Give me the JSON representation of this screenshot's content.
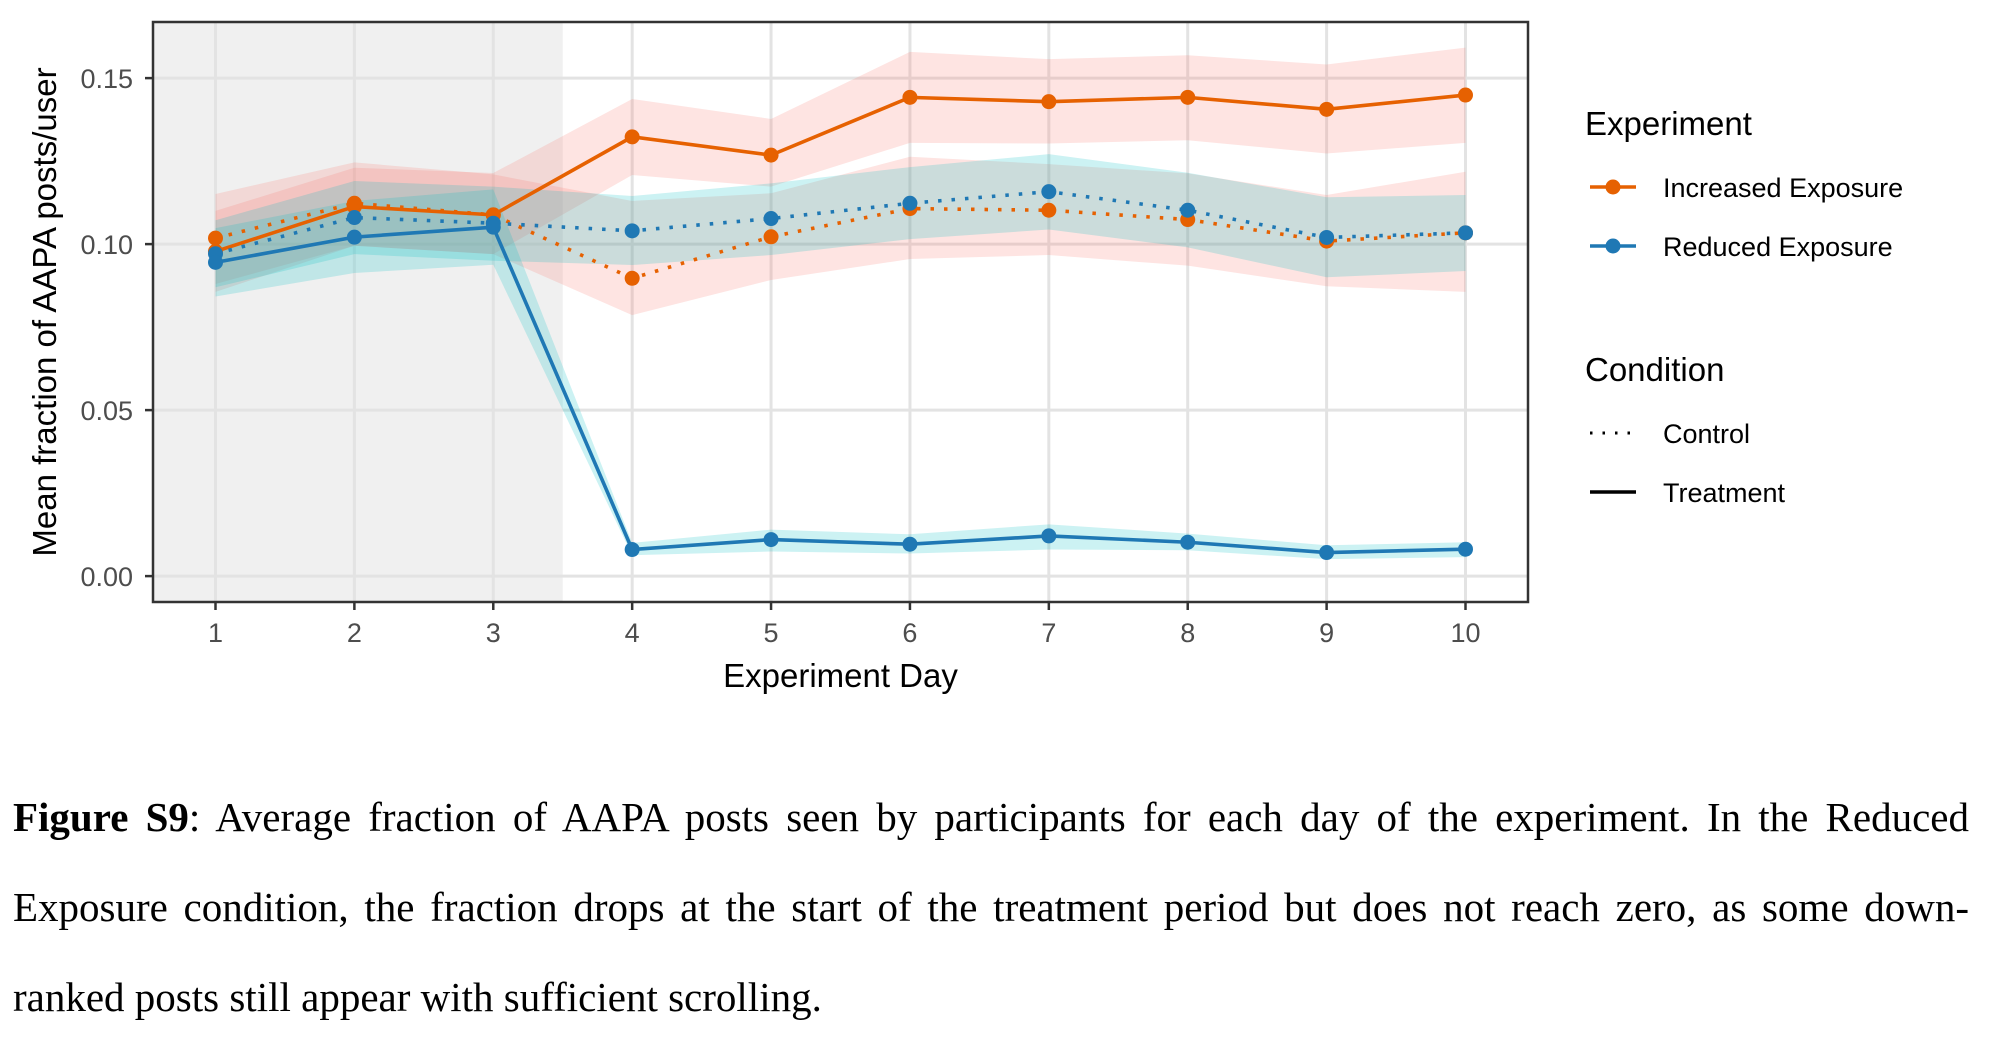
{
  "chart_data": {
    "type": "line",
    "title": "",
    "xlabel": "Experiment Day",
    "ylabel": "Mean fraction of AAPA posts/user",
    "x": [
      1,
      2,
      3,
      4,
      5,
      6,
      7,
      8,
      9,
      10
    ],
    "x_ticks": [
      "1",
      "2",
      "3",
      "4",
      "5",
      "6",
      "7",
      "8",
      "9",
      "10"
    ],
    "xlim": [
      0.55,
      10.45
    ],
    "y_ticks": [
      0.0,
      0.05,
      0.1,
      0.15
    ],
    "y_tick_labels": [
      "0.00",
      "0.05",
      "0.10",
      "0.15"
    ],
    "ylim": [
      -0.0078,
      0.1669
    ],
    "grid": true,
    "shaded_region": {
      "x_from": 0.55,
      "x_to": 3.5,
      "meaning": "pre-treatment period",
      "color": "#f0f0f0"
    },
    "series": [
      {
        "name": "Increased Exposure - Treatment",
        "experiment": "Increased Exposure",
        "condition": "Treatment",
        "color": "#e66101",
        "ribbon_color": "#f8766d",
        "linestyle": "solid",
        "values": [
          0.0978,
          0.1113,
          0.1088,
          0.1323,
          0.1268,
          0.1442,
          0.1429,
          0.1442,
          0.1406,
          0.1449
        ],
        "lower": [
          0.0856,
          0.0995,
          0.097,
          0.1208,
          0.1173,
          0.1305,
          0.1303,
          0.1313,
          0.1273,
          0.1305
        ],
        "upper": [
          0.11,
          0.123,
          0.1214,
          0.1437,
          0.1377,
          0.1579,
          0.1557,
          0.1569,
          0.1541,
          0.1592
        ]
      },
      {
        "name": "Increased Exposure - Control",
        "experiment": "Increased Exposure",
        "condition": "Control",
        "color": "#e66101",
        "ribbon_color": "#f8766d",
        "linestyle": "dotted",
        "values": [
          0.1018,
          0.1123,
          0.1088,
          0.0897,
          0.1022,
          0.1107,
          0.1102,
          0.1074,
          0.1009,
          0.1034
        ],
        "lower": [
          0.088,
          0.0995,
          0.097,
          0.0786,
          0.0892,
          0.0955,
          0.0967,
          0.0935,
          0.0873,
          0.0856
        ],
        "upper": [
          0.1151,
          0.1246,
          0.121,
          0.113,
          0.1153,
          0.1263,
          0.1241,
          0.1213,
          0.1148,
          0.1218
        ]
      },
      {
        "name": "Reduced Exposure - Control",
        "experiment": "Reduced Exposure",
        "condition": "Control",
        "color": "#1f78b4",
        "ribbon_color": "#00bfc4",
        "linestyle": "dotted",
        "values": [
          0.0971,
          0.108,
          0.1063,
          0.104,
          0.1077,
          0.1123,
          0.1158,
          0.1102,
          0.102,
          0.1034
        ],
        "lower": [
          0.087,
          0.097,
          0.095,
          0.0937,
          0.0967,
          0.1015,
          0.1044,
          0.099,
          0.09,
          0.0919
        ],
        "upper": [
          0.1072,
          0.119,
          0.1173,
          0.1145,
          0.1183,
          0.1232,
          0.1271,
          0.1215,
          0.1141,
          0.1148
        ]
      },
      {
        "name": "Reduced Exposure - Treatment",
        "experiment": "Reduced Exposure",
        "condition": "Treatment",
        "color": "#1f78b4",
        "ribbon_color": "#00bfc4",
        "linestyle": "solid",
        "values": [
          0.0945,
          0.1021,
          0.1051,
          0.008,
          0.011,
          0.0096,
          0.0121,
          0.0102,
          0.0071,
          0.0081
        ],
        "lower": [
          0.0842,
          0.0913,
          0.0938,
          0.0063,
          0.0074,
          0.0068,
          0.008,
          0.0078,
          0.0051,
          0.0057
        ],
        "upper": [
          0.1048,
          0.113,
          0.1165,
          0.01,
          0.014,
          0.0126,
          0.0156,
          0.0128,
          0.0093,
          0.0102
        ]
      }
    ],
    "legend": {
      "placement": "right",
      "groups": [
        {
          "title": "Experiment",
          "entries": [
            {
              "label": "Increased Exposure",
              "color": "#e66101",
              "key": "line-point"
            },
            {
              "label": "Reduced Exposure",
              "color": "#1f78b4",
              "key": "line-point"
            }
          ]
        },
        {
          "title": "Condition",
          "entries": [
            {
              "label": "Control",
              "color": "#000000",
              "key": "dotted-line"
            },
            {
              "label": "Treatment",
              "color": "#000000",
              "key": "solid-line"
            }
          ]
        }
      ]
    }
  },
  "caption": {
    "label": "Figure S9",
    "text": ": Average fraction of AAPA posts seen by participants for each day of the experiment. In the Reduced Exposure condition, the fraction drops at the start of the treatment period but does not reach zero, as some down-ranked posts still appear with sufficient scrolling."
  }
}
